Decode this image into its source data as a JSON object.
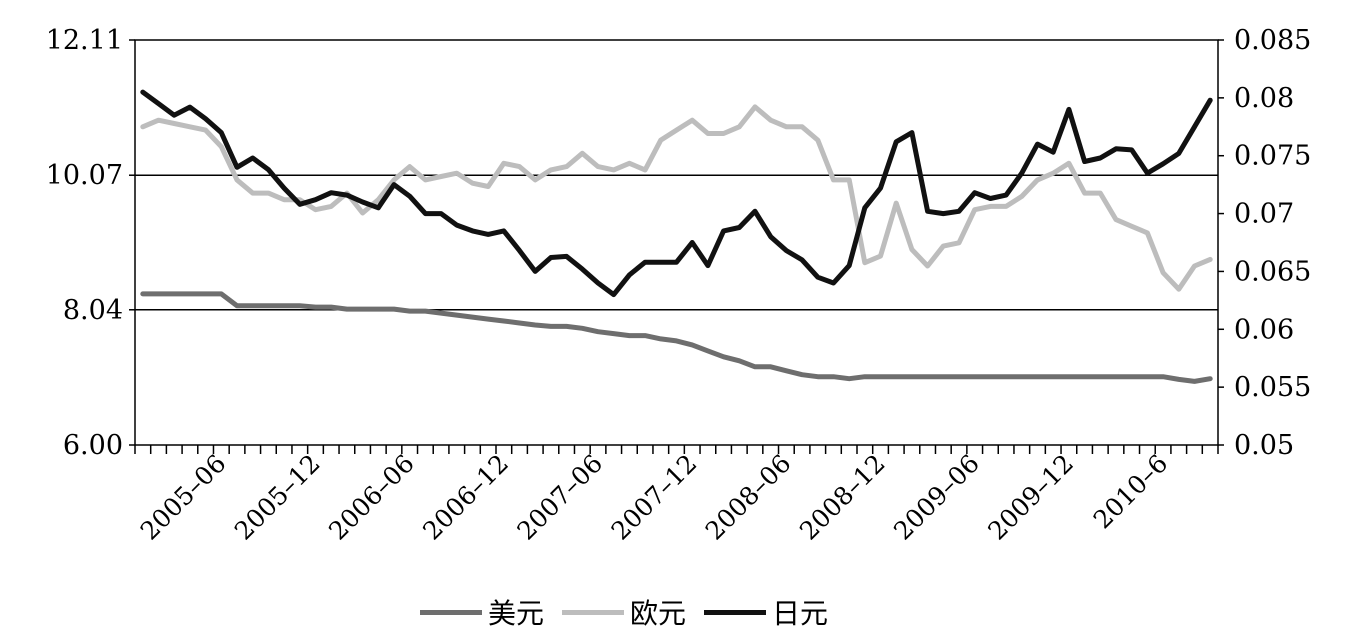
{
  "chart_data": {
    "type": "line",
    "title": "",
    "xlabel": "",
    "ylabel": "",
    "y_left": {
      "ticks": [
        "12.11",
        "10.07",
        "8.04",
        "6.00"
      ],
      "lim": [
        6.0,
        12.11
      ],
      "series": [
        "美元",
        "欧元"
      ]
    },
    "y_right": {
      "ticks": [
        "0.085",
        "0.08",
        "0.075",
        "0.07",
        "0.065",
        "0.06",
        "0.055",
        "0.05"
      ],
      "lim": [
        0.05,
        0.085
      ],
      "series": [
        "日元"
      ]
    },
    "x_tick_labels": [
      "2005–06",
      "2005–12",
      "2006–06",
      "2006–12",
      "2007–06",
      "2007–12",
      "2008–06",
      "2008–12",
      "2009–06",
      "2009–12",
      "2010–6"
    ],
    "x_tick_positions": [
      5,
      11,
      17,
      23,
      29,
      35,
      41,
      47,
      53,
      59,
      65
    ],
    "n_points": 69,
    "gridlines_y_left": [
      10.07,
      8.04
    ],
    "legend_placement": "bottom",
    "series": [
      {
        "name": "美元",
        "color": "#6e6e6e",
        "axis": "left",
        "values": [
          8.28,
          8.28,
          8.28,
          8.28,
          8.28,
          8.28,
          8.1,
          8.1,
          8.1,
          8.1,
          8.1,
          8.08,
          8.08,
          8.05,
          8.05,
          8.05,
          8.05,
          8.02,
          8.02,
          7.99,
          7.96,
          7.93,
          7.9,
          7.87,
          7.84,
          7.81,
          7.79,
          7.79,
          7.76,
          7.71,
          7.68,
          7.65,
          7.65,
          7.6,
          7.57,
          7.51,
          7.42,
          7.33,
          7.27,
          7.18,
          7.18,
          7.12,
          7.06,
          7.03,
          7.03,
          7.0,
          7.03,
          7.03,
          7.03,
          7.03,
          7.03,
          7.03,
          7.03,
          7.03,
          7.03,
          7.03,
          7.03,
          7.03,
          7.03,
          7.03,
          7.03,
          7.03,
          7.03,
          7.03,
          7.03,
          7.03,
          6.99,
          6.96,
          7.0
        ]
      },
      {
        "name": "欧元",
        "color": "#bdbdbd",
        "axis": "left",
        "values": [
          10.8,
          10.9,
          10.85,
          10.8,
          10.75,
          10.5,
          10.0,
          9.8,
          9.8,
          9.7,
          9.7,
          9.55,
          9.6,
          9.8,
          9.5,
          9.7,
          10.0,
          10.2,
          10.0,
          10.05,
          10.1,
          9.95,
          9.9,
          10.25,
          10.2,
          10.0,
          10.15,
          10.2,
          10.4,
          10.2,
          10.15,
          10.25,
          10.15,
          10.6,
          10.75,
          10.9,
          10.7,
          10.7,
          10.8,
          11.1,
          10.9,
          10.8,
          10.8,
          10.6,
          10.0,
          10.0,
          8.75,
          8.85,
          9.65,
          8.95,
          8.7,
          9.0,
          9.05,
          9.55,
          9.6,
          9.6,
          9.75,
          10.0,
          10.1,
          10.25,
          9.8,
          9.8,
          9.4,
          9.3,
          9.2,
          8.6,
          8.35,
          8.7,
          8.8
        ]
      },
      {
        "name": "日元",
        "color": "#111111",
        "axis": "right",
        "values": [
          0.0805,
          0.0795,
          0.0785,
          0.0792,
          0.0782,
          0.077,
          0.074,
          0.0748,
          0.0738,
          0.0722,
          0.0708,
          0.0712,
          0.0718,
          0.0716,
          0.071,
          0.0705,
          0.0725,
          0.0715,
          0.07,
          0.07,
          0.069,
          0.0685,
          0.0682,
          0.0685,
          0.0668,
          0.065,
          0.0662,
          0.0663,
          0.0652,
          0.064,
          0.063,
          0.0647,
          0.0658,
          0.0658,
          0.0658,
          0.0675,
          0.0655,
          0.0685,
          0.0688,
          0.0702,
          0.068,
          0.0668,
          0.066,
          0.0645,
          0.064,
          0.0655,
          0.0705,
          0.0722,
          0.0762,
          0.077,
          0.0702,
          0.07,
          0.0702,
          0.0718,
          0.0713,
          0.0716,
          0.0735,
          0.076,
          0.0753,
          0.079,
          0.0745,
          0.0748,
          0.0756,
          0.0755,
          0.0735,
          0.0743,
          0.0752,
          0.0775,
          0.0798
        ]
      }
    ]
  }
}
